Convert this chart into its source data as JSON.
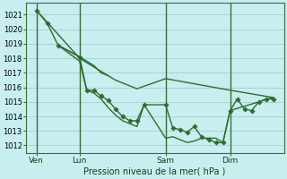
{
  "title": "Pression niveau de la mer( hPa )",
  "bg_color": "#c8eef0",
  "grid_color": "#9ec8cc",
  "line_color": "#2d6e2d",
  "vline_color": "#3a6e3a",
  "ylim": [
    1011.5,
    1021.8
  ],
  "yticks": [
    1012,
    1013,
    1014,
    1015,
    1016,
    1017,
    1018,
    1019,
    1020,
    1021
  ],
  "xlim": [
    0,
    72
  ],
  "xtick_labels": [
    "Ven",
    "Lun",
    "Sam",
    "Dim"
  ],
  "xtick_positions": [
    3,
    15,
    39,
    57
  ],
  "vline_positions": [
    3,
    15,
    39,
    57
  ],
  "series": [
    {
      "x": [
        3,
        6,
        9,
        15,
        17,
        19,
        21,
        23,
        25,
        27,
        29,
        31,
        33,
        39,
        41,
        43,
        45,
        47,
        49,
        51,
        53,
        55,
        57,
        59,
        61,
        63,
        65,
        67,
        69
      ],
      "y": [
        1021.3,
        1020.4,
        1018.9,
        1018.1,
        1015.8,
        1015.8,
        1015.4,
        1015.1,
        1014.5,
        1014.0,
        1013.7,
        1013.7,
        1014.8,
        1014.8,
        1013.2,
        1013.1,
        1012.9,
        1013.3,
        1012.6,
        1012.4,
        1012.2,
        1012.2,
        1014.4,
        1015.2,
        1014.5,
        1014.4,
        1015.0,
        1015.2,
        1015.2
      ],
      "marker": "D",
      "linewidth": 1.0,
      "markersize": 2.8
    },
    {
      "x": [
        3,
        15,
        17,
        19,
        21,
        23,
        25,
        27,
        29,
        31,
        39,
        57,
        69
      ],
      "y": [
        1021.3,
        1018.0,
        1017.7,
        1017.4,
        1017.1,
        1016.8,
        1016.5,
        1016.3,
        1016.1,
        1015.9,
        1016.6,
        1015.8,
        1015.3
      ],
      "marker": null,
      "linewidth": 1.0,
      "markersize": 0
    },
    {
      "x": [
        9,
        15,
        17,
        19,
        21,
        23,
        25,
        27,
        29,
        31,
        33,
        39,
        41,
        43,
        45,
        47,
        49,
        51,
        53,
        55,
        57,
        69
      ],
      "y": [
        1018.9,
        1017.8,
        1015.8,
        1015.6,
        1015.2,
        1014.6,
        1014.1,
        1013.7,
        1013.5,
        1013.3,
        1014.8,
        1012.5,
        1012.6,
        1012.4,
        1012.2,
        1012.3,
        1012.5,
        1012.5,
        1012.5,
        1012.2,
        1014.4,
        1015.3
      ],
      "marker": null,
      "linewidth": 1.0,
      "markersize": 0
    },
    {
      "x": [
        9,
        15,
        17,
        19,
        21,
        23
      ],
      "y": [
        1018.9,
        1018.1,
        1017.8,
        1017.5,
        1017.0,
        1016.8
      ],
      "marker": null,
      "linewidth": 1.0,
      "markersize": 0
    }
  ]
}
